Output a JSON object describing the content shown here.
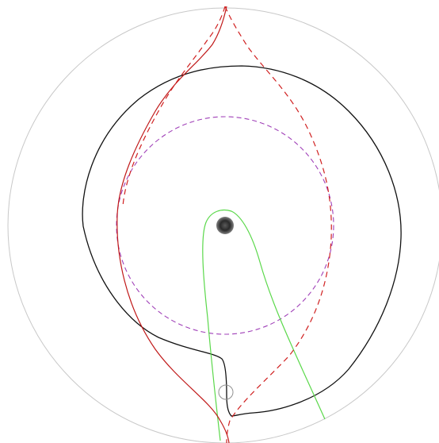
{
  "diagram": {
    "background": "#ffffff",
    "elements": [
      {
        "id": "outer-boundary",
        "kind": "circle",
        "color": "#c8c8c8",
        "style": "solid"
      },
      {
        "id": "dashed-ring",
        "kind": "circle",
        "color": "#a040b8",
        "style": "dashed"
      },
      {
        "id": "black-trajectory",
        "kind": "curve",
        "color": "#111111",
        "style": "solid"
      },
      {
        "id": "green-trajectory",
        "kind": "curve",
        "color": "#5ad84a",
        "style": "solid"
      },
      {
        "id": "red-solid-trajectory",
        "kind": "curve",
        "color": "#c01818",
        "style": "solid"
      },
      {
        "id": "red-dashed-trajectory",
        "kind": "curve",
        "color": "#d02020",
        "style": "dashed"
      },
      {
        "id": "central-mass",
        "kind": "point",
        "color": "#111111",
        "style": "filled"
      },
      {
        "id": "small-marker",
        "kind": "circle",
        "color": "#909090",
        "style": "outline"
      }
    ]
  }
}
